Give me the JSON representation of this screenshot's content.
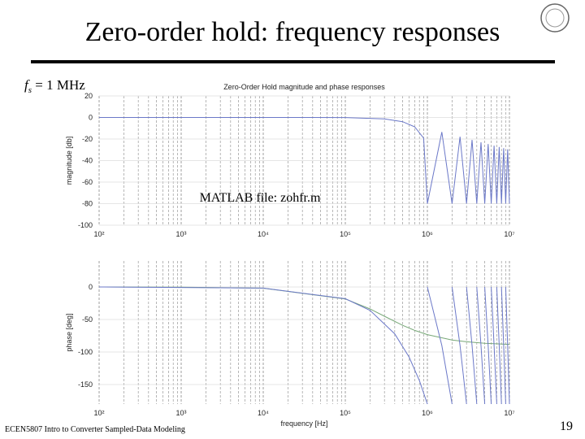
{
  "slide": {
    "title": "Zero-order hold: frequency responses",
    "fs_label": {
      "symbol": "f",
      "subscript": "s",
      "text": " = 1 MHz"
    },
    "note": "MATLAB file: zohfr.m",
    "footer": "ECEN5807 Intro to Converter Sampled-Data Modeling",
    "page": "19"
  },
  "chart_data": [
    {
      "type": "line",
      "title": "Zero-Order Hold magnitude and phase responses",
      "ylabel": "magnitude [db]",
      "log_x": true,
      "grid": true,
      "xlim": [
        100,
        10000000
      ],
      "xticks": [
        {
          "value": 100,
          "label": "10²"
        },
        {
          "value": 1000,
          "label": "10³"
        },
        {
          "value": 10000,
          "label": "10⁴"
        },
        {
          "value": 100000,
          "label": "10⁵"
        },
        {
          "value": 1000000,
          "label": "10⁶"
        },
        {
          "value": 10000000,
          "label": "10⁷"
        }
      ],
      "ylim": [
        -100,
        20
      ],
      "yticks": [
        20,
        0,
        -20,
        -40,
        -60,
        -80,
        -100
      ],
      "x": [
        100,
        1000,
        10000,
        100000,
        300000,
        500000,
        700000,
        900000,
        1000000,
        1500000,
        2000000,
        2500000,
        3000000,
        3500000,
        4000000,
        4500000,
        5000000,
        5500000,
        6000000,
        6500000,
        7000000,
        7500000,
        8000000,
        8500000,
        9000000,
        9500000,
        10000000
      ],
      "series": [
        {
          "color": "#6b78c8",
          "values": [
            0,
            0,
            0,
            -0.1,
            -1.3,
            -3.9,
            -8.7,
            -19.2,
            -80,
            -13.5,
            -80,
            -17.9,
            -80,
            -20.8,
            -80,
            -23,
            -80,
            -24.7,
            -80,
            -26.2,
            -80,
            -27.4,
            -80,
            -28.5,
            -80,
            -29.5,
            -80
          ]
        }
      ]
    },
    {
      "type": "line",
      "xlabel": "frequency [Hz]",
      "ylabel": "phase [deg]",
      "log_x": true,
      "grid": true,
      "xlim": [
        100,
        10000000
      ],
      "xticks": [
        {
          "value": 100,
          "label": "10²"
        },
        {
          "value": 1000,
          "label": "10³"
        },
        {
          "value": 10000,
          "label": "10⁴"
        },
        {
          "value": 100000,
          "label": "10⁵"
        },
        {
          "value": 1000000,
          "label": "10⁶"
        },
        {
          "value": 10000000,
          "label": "10⁷"
        }
      ],
      "ylim": [
        -180,
        40
      ],
      "yticks": [
        0,
        -50,
        -100,
        -150
      ],
      "x": [
        100,
        1000,
        10000,
        100000,
        200000,
        300000,
        500000,
        700000,
        1000000,
        2000000,
        3000000,
        5000000,
        10000000
      ],
      "series": [
        {
          "color": "#78a878",
          "values": [
            0,
            -0.2,
            -1.9,
            -18.4,
            -33.7,
            -45,
            -59,
            -66.8,
            -73.3,
            -81.5,
            -84.3,
            -86.6,
            -88.3
          ]
        }
      ]
    },
    {
      "type": "line",
      "overlay": true,
      "x": [
        100,
        10000,
        100000,
        200000,
        400000,
        600000,
        800000,
        1000000,
        1000000,
        1000000,
        1500000,
        2000000,
        2000000,
        2000000,
        2500000,
        3000000,
        3000000,
        3000000,
        3500000,
        4000000,
        4000000,
        4000000,
        4500000,
        5000000,
        5000000,
        5000000,
        5500000,
        6000000,
        6000000,
        6000000,
        6500000,
        7000000,
        7000000,
        7000000,
        7500000,
        8000000,
        8000000,
        8000000,
        8500000,
        9000000,
        9000000,
        9000000,
        9500000,
        10000000
      ],
      "series": [
        {
          "color": "#6b78c8",
          "values": [
            0,
            -1.8,
            -18,
            -36,
            -72,
            -108,
            -144,
            -180,
            null,
            0,
            -90,
            -180,
            null,
            0,
            -90,
            -180,
            null,
            0,
            -90,
            -180,
            null,
            0,
            -90,
            -180,
            null,
            0,
            -90,
            -180,
            null,
            0,
            -90,
            -180,
            null,
            0,
            -90,
            -180,
            null,
            0,
            -90,
            -180,
            null,
            0,
            -90,
            -180
          ]
        }
      ]
    }
  ]
}
